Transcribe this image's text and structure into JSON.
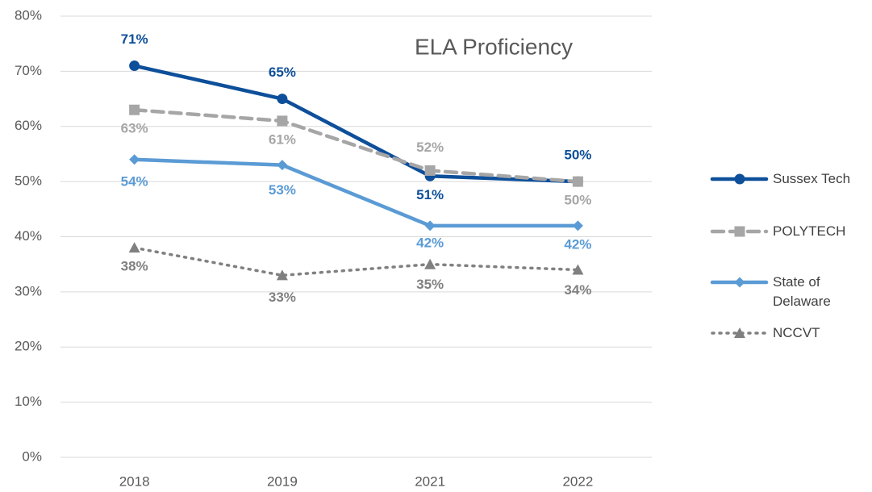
{
  "chart_data": {
    "type": "line",
    "title": "ELA Proficiency",
    "categories": [
      "2018",
      "2019",
      "2021",
      "2022"
    ],
    "series": [
      {
        "name": "Sussex Tech",
        "color": "#0d4f9a",
        "dash": "solid",
        "marker": "circle",
        "values": [
          71,
          65,
          51,
          50
        ],
        "value_labels": [
          "71%",
          "65%",
          "51%",
          "50%"
        ]
      },
      {
        "name": "POLYTECH",
        "color": "#a6a6a6",
        "dash": "dashed",
        "marker": "square",
        "values": [
          63,
          61,
          52,
          50
        ],
        "value_labels": [
          "63%",
          "61%",
          "52%",
          "50%"
        ]
      },
      {
        "name": "State of Delaware",
        "color": "#5b9bd5",
        "dash": "solid",
        "marker": "diamond",
        "values": [
          54,
          53,
          42,
          42
        ],
        "value_labels": [
          "54%",
          "53%",
          "42%",
          "42%"
        ]
      },
      {
        "name": "NCCVT",
        "color": "#808080",
        "dash": "dotted",
        "marker": "triangle",
        "values": [
          38,
          33,
          35,
          34
        ],
        "value_labels": [
          "38%",
          "33%",
          "35%",
          "34%"
        ]
      }
    ],
    "ylim": [
      0,
      80
    ],
    "yticks": [
      {
        "value": 0,
        "label": "0%"
      },
      {
        "value": 10,
        "label": "10%"
      },
      {
        "value": 20,
        "label": "20%"
      },
      {
        "value": 30,
        "label": "30%"
      },
      {
        "value": 40,
        "label": "40%"
      },
      {
        "value": 50,
        "label": "50%"
      },
      {
        "value": 60,
        "label": "60%"
      },
      {
        "value": 70,
        "label": "70%"
      },
      {
        "value": 80,
        "label": "80%"
      }
    ],
    "grid": true,
    "legend": "right"
  }
}
